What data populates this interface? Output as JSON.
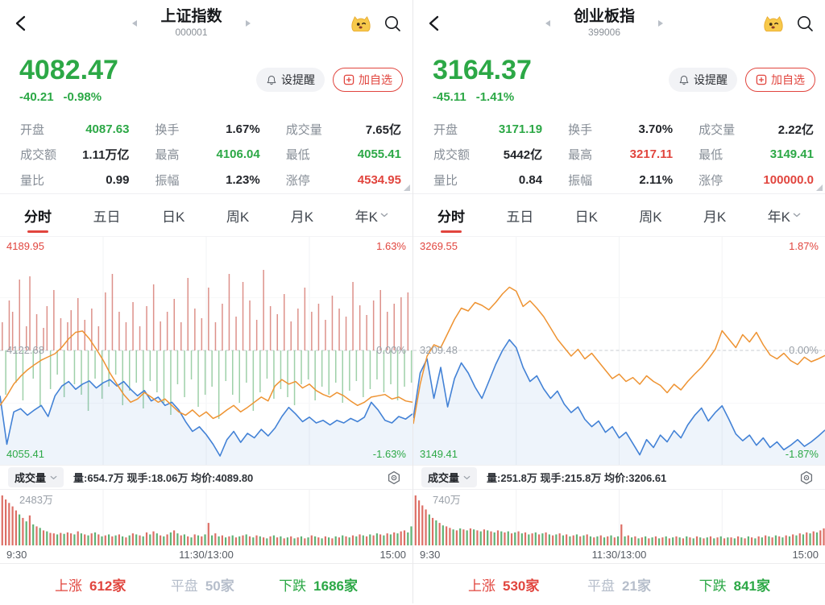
{
  "colors": {
    "green": "#2ca846",
    "red": "#e1453e",
    "blue": "#4382d6",
    "orange": "#ee9332",
    "bar_red": "#d4766d",
    "bar_green": "#86c493",
    "vol_red": "#dd6f66",
    "vol_green": "#5fb274"
  },
  "icons": {
    "back": "chevron-left",
    "prev": "triangle-left",
    "next": "triangle-right",
    "mascot": "winking-crown-emoji",
    "search": "magnifier",
    "alert": "bell",
    "watch": "plus-square",
    "tab_dropdown": "chevron-down",
    "vol_dropdown": "chevron-down",
    "settings": "gear-hexagon",
    "stats_expand": "corner-triangle"
  },
  "panels": [
    {
      "header": {
        "title": "上证指数",
        "code": "000001"
      },
      "price": {
        "value": "4082.47",
        "change": "-40.21",
        "change_pct": "-0.98%"
      },
      "actions": {
        "set_alert": "设提醒",
        "add_watchlist": "加自选"
      },
      "stats": [
        {
          "label": "开盘",
          "value": "4087.63",
          "color": "green"
        },
        {
          "label": "换手",
          "value": "1.67%",
          "color": "black"
        },
        {
          "label": "成交量",
          "value": "7.65亿",
          "color": "black"
        },
        {
          "label": "成交额",
          "value": "1.11万亿",
          "color": "black"
        },
        {
          "label": "最高",
          "value": "4106.04",
          "color": "green"
        },
        {
          "label": "最低",
          "value": "4055.41",
          "color": "green"
        },
        {
          "label": "量比",
          "value": "0.99",
          "color": "black"
        },
        {
          "label": "振幅",
          "value": "1.23%",
          "color": "black"
        },
        {
          "label": "涨停",
          "value": "4534.95",
          "color": "red"
        }
      ],
      "tabs": [
        {
          "label": "分时"
        },
        {
          "label": "五日"
        },
        {
          "label": "日K"
        },
        {
          "label": "周K"
        },
        {
          "label": "月K"
        },
        {
          "label": "年K"
        }
      ],
      "chart_labels": {
        "high": "4189.95",
        "high_pct": "1.63%",
        "mid": "4122.68",
        "mid_pct": "0.00%",
        "low": "4055.41",
        "low_pct": "-1.63%"
      },
      "volume_row": {
        "selector": "成交量",
        "stats": "量:654.7万 现手:18.06万 均价:4089.80"
      },
      "volume_max": "2483万",
      "time_axis": [
        "9:30",
        "11:30/13:00",
        "15:00"
      ],
      "breadth": {
        "up_label": "上涨",
        "up": "612家",
        "flat_label": "平盘",
        "flat": "50家",
        "down_label": "下跌",
        "down": "1686家"
      }
    },
    {
      "header": {
        "title": "创业板指",
        "code": "399006"
      },
      "price": {
        "value": "3164.37",
        "change": "-45.11",
        "change_pct": "-1.41%"
      },
      "actions": {
        "set_alert": "设提醒",
        "add_watchlist": "加自选"
      },
      "stats": [
        {
          "label": "开盘",
          "value": "3171.19",
          "color": "green"
        },
        {
          "label": "换手",
          "value": "3.70%",
          "color": "black"
        },
        {
          "label": "成交量",
          "value": "2.22亿",
          "color": "black"
        },
        {
          "label": "成交额",
          "value": "5442亿",
          "color": "black"
        },
        {
          "label": "最高",
          "value": "3217.11",
          "color": "red"
        },
        {
          "label": "最低",
          "value": "3149.41",
          "color": "green"
        },
        {
          "label": "量比",
          "value": "0.84",
          "color": "black"
        },
        {
          "label": "振幅",
          "value": "2.11%",
          "color": "black"
        },
        {
          "label": "涨停",
          "value": "100000.0",
          "color": "red"
        }
      ],
      "tabs": [
        {
          "label": "分时"
        },
        {
          "label": "五日"
        },
        {
          "label": "日K"
        },
        {
          "label": "周K"
        },
        {
          "label": "月K"
        },
        {
          "label": "年K"
        }
      ],
      "chart_labels": {
        "high": "3269.55",
        "high_pct": "1.87%",
        "mid": "3209.48",
        "mid_pct": "0.00%",
        "low": "3149.41",
        "low_pct": "-1.87%"
      },
      "volume_row": {
        "selector": "成交量",
        "stats": "量:251.8万 现手:215.8万 均价:3206.61"
      },
      "volume_max": "740万",
      "time_axis": [
        "9:30",
        "11:30/13:00",
        "15:00"
      ],
      "breadth": {
        "up_label": "上涨",
        "up": "530家",
        "flat_label": "平盘",
        "flat": "21家",
        "down_label": "下跌",
        "down": "841家"
      }
    }
  ],
  "chart_data": [
    {
      "type": "line",
      "title": "上证指数 分时",
      "x_axis": [
        "9:30",
        "11:30/13:00",
        "15:00"
      ],
      "prev_close": 4122.68,
      "y_axis": {
        "price_high": 4189.95,
        "price_mid": 4122.68,
        "price_low": 4055.41,
        "pct_high": 1.63,
        "pct_low": -1.63
      },
      "series": [
        {
          "name": "price_pct",
          "color": "#4382d6",
          "values": [
            -0.7,
            -1.45,
            -0.95,
            -0.9,
            -1.0,
            -0.92,
            -0.85,
            -1.02,
            -0.7,
            -0.55,
            -0.48,
            -0.6,
            -0.52,
            -0.47,
            -0.58,
            -0.5,
            -0.45,
            -0.55,
            -0.48,
            -0.6,
            -0.7,
            -0.62,
            -0.78,
            -0.72,
            -0.85,
            -0.8,
            -0.92,
            -1.1,
            -1.25,
            -1.18,
            -1.3,
            -1.45,
            -1.63,
            -1.38,
            -1.25,
            -1.42,
            -1.28,
            -1.35,
            -1.22,
            -1.32,
            -1.2,
            -1.02,
            -0.88,
            -0.98,
            -1.1,
            -1.03,
            -1.12,
            -1.08,
            -1.15,
            -1.08,
            -1.12,
            -1.05,
            -1.1,
            -1.03,
            -0.8,
            -0.92,
            -1.08,
            -1.12,
            -1.02,
            -1.06,
            -0.98
          ]
        },
        {
          "name": "avg_pct",
          "color": "#ee9332",
          "values": [
            -0.85,
            -0.7,
            -0.52,
            -0.4,
            -0.3,
            -0.22,
            -0.15,
            -0.1,
            -0.05,
            0.05,
            0.18,
            0.28,
            0.3,
            0.18,
            0.02,
            -0.15,
            -0.35,
            -0.52,
            -0.68,
            -0.8,
            -0.75,
            -0.65,
            -0.72,
            -0.8,
            -0.75,
            -0.85,
            -0.95,
            -1.0,
            -0.92,
            -1.02,
            -0.95,
            -1.05,
            -1.0,
            -0.92,
            -0.85,
            -0.95,
            -0.88,
            -0.8,
            -0.72,
            -0.78,
            -0.55,
            -0.45,
            -0.52,
            -0.48,
            -0.58,
            -0.52,
            -0.62,
            -0.68,
            -0.72,
            -0.65,
            -0.7,
            -0.78,
            -0.85,
            -0.8,
            -0.72,
            -0.7,
            -0.68,
            -0.75,
            -0.72,
            -0.78,
            -0.8
          ]
        }
      ],
      "minute_change_bars": [
        0.35,
        -0.55,
        0.62,
        0.48,
        -0.4,
        0.88,
        -0.62,
        0.3,
        0.92,
        -0.35,
        0.45,
        -0.7,
        0.28,
        0.55,
        -0.48,
        0.75,
        -0.3,
        0.4,
        -0.58,
        0.35,
        0.5,
        -0.42,
        0.65,
        -0.55,
        0.38,
        -0.75,
        0.52,
        -0.35,
        0.3,
        -0.6,
        0.72,
        -0.45,
        0.95,
        -0.3,
        0.48,
        -0.68,
        0.35,
        -0.5,
        0.6,
        -0.4,
        0.3,
        -0.72,
        0.55,
        -0.38,
        0.82,
        -0.52,
        0.36,
        -0.65,
        0.48,
        -0.8,
        0.64,
        -0.42,
        0.35,
        -0.58,
        0.9,
        -0.36,
        0.52,
        -0.7,
        0.4,
        -0.55,
        0.78,
        -0.45,
        0.35,
        -0.85,
        0.58,
        -0.38,
        0.95,
        -0.55,
        0.42,
        -0.65,
        0.85,
        -0.4,
        0.62,
        -0.75,
        0.38,
        -0.52,
        1.0,
        -0.35,
        0.55,
        -0.6,
        0.45,
        -0.48,
        0.7,
        -0.58,
        0.36,
        -0.68,
        0.52,
        -0.42,
        0.78,
        -0.36,
        0.48,
        -0.62,
        0.58,
        -0.45,
        0.38,
        -0.55,
        0.68,
        -0.4,
        0.52,
        -0.65,
        0.42,
        -0.5,
        0.85,
        -0.38,
        0.56,
        -0.58,
        0.44,
        -0.48,
        0.62,
        -0.36,
        0.75,
        -0.52,
        0.48,
        -0.42,
        0.58,
        -0.62,
        0.66,
        -0.45,
        0.72,
        -0.4
      ],
      "volume": {
        "max": "2483万",
        "bars": [
          1.0,
          0.92,
          0.85,
          0.78,
          0.7,
          -0.62,
          0.55,
          -0.48,
          0.6,
          -0.42,
          0.38,
          -0.35,
          0.3,
          -0.28,
          0.25,
          0.24,
          -0.22,
          0.25,
          -0.23,
          0.26,
          0.24,
          -0.22,
          0.28,
          -0.24,
          0.22,
          -0.2,
          0.24,
          -0.26,
          0.22,
          -0.18,
          0.2,
          -0.22,
          0.18,
          -0.2,
          0.22,
          -0.18,
          0.16,
          -0.2,
          0.24,
          -0.22,
          0.2,
          -0.18,
          0.26,
          -0.22,
          0.28,
          -0.24,
          0.2,
          -0.18,
          0.22,
          -0.26,
          0.3,
          -0.24,
          0.2,
          -0.22,
          0.18,
          -0.16,
          0.22,
          -0.2,
          0.18,
          -0.22,
          0.45,
          -0.2,
          0.24,
          -0.18,
          0.2,
          -0.16,
          0.18,
          -0.2,
          0.16,
          -0.18,
          0.2,
          -0.22,
          0.18,
          -0.16,
          0.2,
          -0.18,
          0.16,
          -0.14,
          0.18,
          -0.2,
          0.16,
          -0.18,
          0.14,
          -0.16,
          0.18,
          -0.14,
          0.16,
          -0.18,
          0.14,
          -0.16,
          0.2,
          -0.18,
          0.16,
          -0.14,
          0.18,
          -0.16,
          0.14,
          -0.18,
          0.16,
          -0.2,
          0.18,
          -0.16,
          0.2,
          -0.18,
          0.22,
          -0.2,
          0.18,
          -0.22,
          0.2,
          -0.24,
          0.22,
          -0.2,
          0.24,
          -0.22,
          0.26,
          -0.24,
          0.28,
          0.3,
          -0.26,
          -0.38
        ]
      }
    },
    {
      "type": "line",
      "title": "创业板指 分时",
      "x_axis": [
        "9:30",
        "11:30/13:00",
        "15:00"
      ],
      "prev_close": 3209.48,
      "y_axis": {
        "price_high": 3269.55,
        "price_mid": 3209.48,
        "price_low": 3149.41,
        "pct_high": 1.87,
        "pct_low": -1.87
      },
      "series": [
        {
          "name": "price_pct",
          "color": "#4382d6",
          "values": [
            -1.2,
            -0.4,
            -0.15,
            -0.85,
            -0.3,
            -1.0,
            -0.5,
            -0.22,
            -0.4,
            -0.65,
            -0.85,
            -0.55,
            -0.25,
            0.0,
            0.19,
            0.05,
            -0.3,
            -0.55,
            -0.45,
            -0.68,
            -0.85,
            -0.72,
            -0.95,
            -1.1,
            -1.0,
            -1.22,
            -1.35,
            -1.25,
            -1.45,
            -1.35,
            -1.55,
            -1.45,
            -1.65,
            -1.85,
            -1.58,
            -1.72,
            -1.5,
            -1.62,
            -1.42,
            -1.55,
            -1.32,
            -1.15,
            -1.02,
            -1.25,
            -1.1,
            -0.98,
            -1.22,
            -1.48,
            -1.6,
            -1.5,
            -1.68,
            -1.55,
            -1.72,
            -1.62,
            -1.76,
            -1.68,
            -1.58,
            -1.7,
            -1.62,
            -1.52,
            -1.41
          ]
        },
        {
          "name": "avg_pct",
          "color": "#ee9332",
          "values": [
            -1.3,
            -0.6,
            -0.1,
            0.1,
            0.05,
            0.3,
            0.55,
            0.75,
            0.7,
            0.85,
            0.8,
            0.72,
            0.85,
            1.0,
            1.12,
            1.05,
            0.78,
            0.88,
            0.75,
            0.6,
            0.4,
            0.2,
            0.05,
            -0.1,
            0.02,
            -0.15,
            -0.05,
            -0.2,
            -0.35,
            -0.5,
            -0.42,
            -0.55,
            -0.48,
            -0.6,
            -0.45,
            -0.55,
            -0.62,
            -0.75,
            -0.6,
            -0.7,
            -0.55,
            -0.42,
            -0.3,
            -0.15,
            0.02,
            0.35,
            0.2,
            0.05,
            0.28,
            0.15,
            0.32,
            0.1,
            -0.08,
            -0.15,
            -0.05,
            -0.18,
            -0.25,
            -0.12,
            -0.2,
            -0.15,
            -0.09
          ]
        }
      ],
      "minute_change_bars": [],
      "volume": {
        "max": "740万",
        "bars": [
          1.0,
          0.9,
          0.8,
          0.72,
          -0.62,
          0.55,
          -0.5,
          0.45,
          -0.4,
          0.38,
          0.35,
          -0.32,
          0.3,
          -0.34,
          0.32,
          -0.3,
          0.34,
          -0.32,
          0.3,
          -0.28,
          0.32,
          -0.3,
          0.28,
          -0.26,
          0.3,
          -0.28,
          0.26,
          -0.28,
          0.24,
          -0.26,
          0.28,
          -0.24,
          0.26,
          -0.22,
          0.24,
          -0.26,
          0.22,
          -0.24,
          0.26,
          -0.22,
          0.2,
          -0.22,
          0.24,
          -0.2,
          0.22,
          -0.18,
          0.2,
          -0.22,
          0.18,
          -0.2,
          0.22,
          -0.18,
          0.16,
          -0.18,
          0.2,
          -0.16,
          0.18,
          -0.2,
          0.16,
          -0.18,
          0.42,
          -0.18,
          0.2,
          -0.16,
          0.18,
          -0.14,
          0.16,
          -0.18,
          0.14,
          -0.16,
          0.18,
          -0.14,
          0.16,
          -0.18,
          0.14,
          -0.16,
          0.18,
          -0.16,
          0.14,
          -0.18,
          0.16,
          -0.14,
          0.18,
          -0.16,
          0.14,
          -0.16,
          0.18,
          -0.14,
          0.16,
          -0.18,
          0.14,
          -0.16,
          0.16,
          -0.14,
          0.18,
          -0.16,
          0.14,
          -0.18,
          0.16,
          -0.14,
          0.18,
          -0.16,
          0.2,
          -0.18,
          0.16,
          -0.2,
          0.18,
          -0.16,
          0.2,
          -0.18,
          0.22,
          -0.2,
          0.24,
          -0.22,
          0.26,
          -0.24,
          0.28,
          -0.26,
          0.3,
          0.34
        ]
      }
    }
  ]
}
